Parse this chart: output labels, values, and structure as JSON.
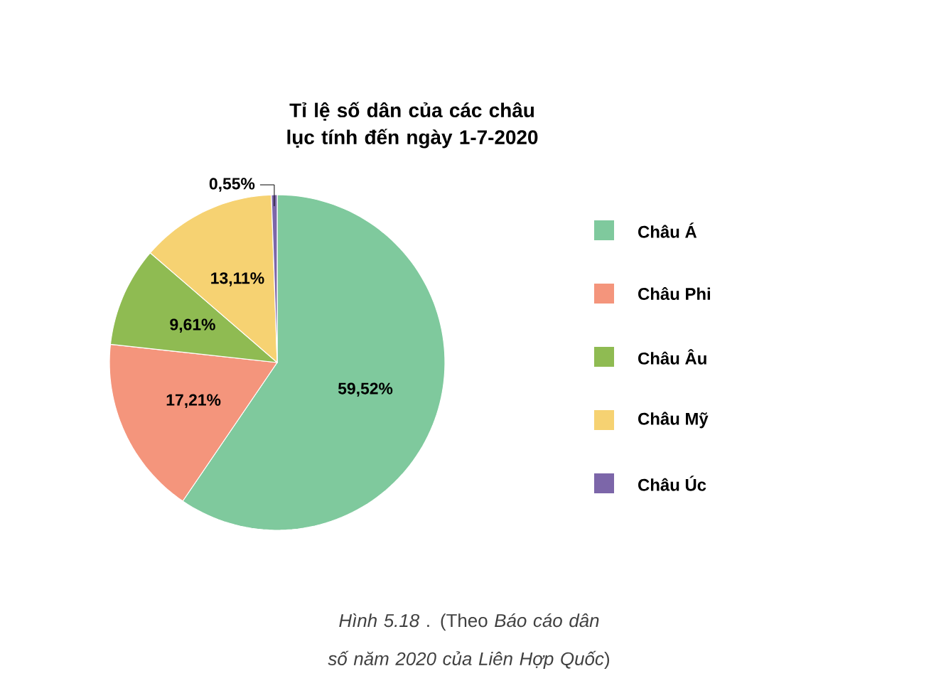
{
  "chart_data": {
    "type": "pie",
    "title": "Tỉ lệ số dân của các châu lục tính đến ngày 1-7-2020",
    "categories": [
      "Châu Á",
      "Châu Phi",
      "Châu Âu",
      "Châu Mỹ",
      "Châu Úc"
    ],
    "values": [
      59.52,
      17.21,
      9.61,
      13.11,
      0.55
    ],
    "colors": [
      "#7fc99d",
      "#f4957c",
      "#8fbb52",
      "#f6d272",
      "#7c66a9"
    ],
    "value_labels": [
      "59,52%",
      "17,21%",
      "9,61%",
      "13,11%",
      "0,55%"
    ],
    "legend": "right",
    "annotations": [
      "*Hình 5.18* . (Theo *Báo cáo dân số năm 2020 của Liên Hợp Quốc*)"
    ]
  }
}
